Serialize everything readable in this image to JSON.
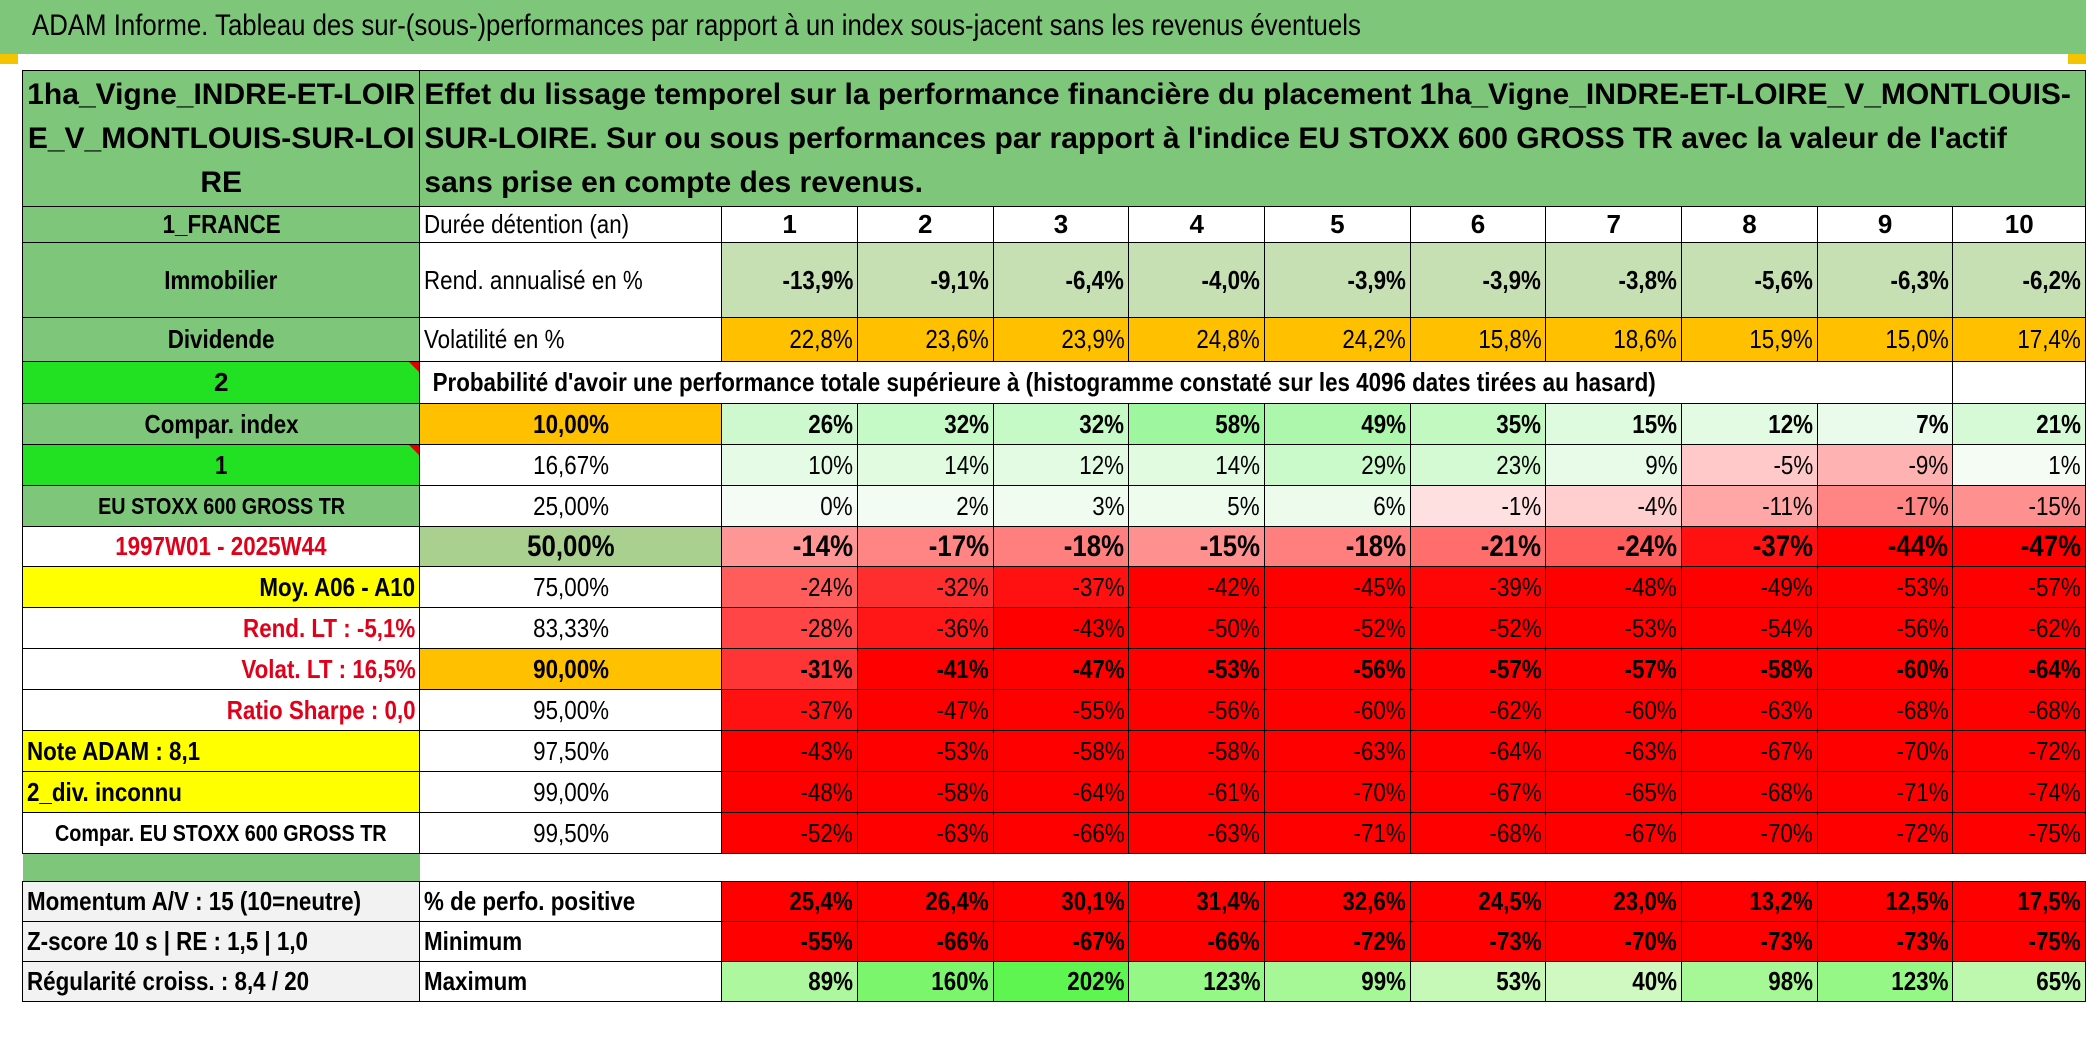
{
  "title": "ADAM Informe. Tableau des sur-(sous-)performances par rapport à un index sous-jacent sans les revenus éventuels",
  "asset_name": "1ha_Vigne_INDRE-ET-LOIRE_V_MONTLOUIS-SUR-LOIRE",
  "description": "Effet du lissage temporel sur la performance financière du placement 1ha_Vigne_INDRE-ET-LOIRE_V_MONTLOUIS-SUR-LOIRE. Sur ou sous performances par rapport à l'indice EU STOXX 600 GROSS TR avec la valeur de l'actif sans prise en compte des revenus.",
  "side_labels": {
    "country": "1_FRANCE",
    "category": "Immobilier",
    "dividend": "Dividende",
    "num2": "2",
    "compar_index": "Compar. index",
    "num1": "1",
    "index_name": "EU STOXX 600 GROSS TR",
    "period": "1997W01 - 2025W44",
    "moy": "Moy. A06 - A10",
    "rend_lt": "Rend. LT :    -5,1%",
    "volat_lt": "Volat. LT :    16,5%",
    "sharpe": "Ratio Sharpe :    0,0",
    "note": "Note ADAM : 8,1",
    "div": "2_div. inconnu",
    "compar_full": "Compar. EU STOXX 600 GROSS TR",
    "momentum": "Momentum A/V : 15 (10=neutre)",
    "zscore": "Z-score 10 s | RE : 1,5 | 1,0",
    "regularite": "Régularité croiss. : 8,4 / 20"
  },
  "row_labels": {
    "duree": "Durée détention (an)",
    "rend": "Rend. annualisé en %",
    "vol": "Volatilité en %",
    "proba": "Probabilité d'avoir une performance totale supérieure à (histogramme constaté sur les 4096 dates tirées au hasard)",
    "pos": "% de perfo. positive",
    "min": "Minimum",
    "max": "Maximum"
  },
  "years": [
    "1",
    "2",
    "3",
    "4",
    "5",
    "6",
    "7",
    "8",
    "9",
    "10"
  ],
  "rend": [
    "-13,9%",
    "-9,1%",
    "-6,4%",
    "-4,0%",
    "-3,9%",
    "-3,9%",
    "-3,8%",
    "-5,6%",
    "-6,3%",
    "-6,2%"
  ],
  "vol": [
    "22,8%",
    "23,6%",
    "23,9%",
    "24,8%",
    "24,2%",
    "15,8%",
    "18,6%",
    "15,9%",
    "15,0%",
    "17,4%"
  ],
  "prob_rows": [
    {
      "p": "10,00%",
      "vals": [
        "26%",
        "32%",
        "32%",
        "58%",
        "49%",
        "35%",
        "15%",
        "12%",
        "7%",
        "21%"
      ]
    },
    {
      "p": "16,67%",
      "vals": [
        "10%",
        "14%",
        "12%",
        "14%",
        "29%",
        "23%",
        "9%",
        "-5%",
        "-9%",
        "1%"
      ]
    },
    {
      "p": "25,00%",
      "vals": [
        "0%",
        "2%",
        "3%",
        "5%",
        "6%",
        "-1%",
        "-4%",
        "-11%",
        "-17%",
        "-15%"
      ]
    },
    {
      "p": "50,00%",
      "vals": [
        "-14%",
        "-17%",
        "-18%",
        "-15%",
        "-18%",
        "-21%",
        "-24%",
        "-37%",
        "-44%",
        "-47%"
      ]
    },
    {
      "p": "75,00%",
      "vals": [
        "-24%",
        "-32%",
        "-37%",
        "-42%",
        "-45%",
        "-39%",
        "-48%",
        "-49%",
        "-53%",
        "-57%"
      ]
    },
    {
      "p": "83,33%",
      "vals": [
        "-28%",
        "-36%",
        "-43%",
        "-50%",
        "-52%",
        "-52%",
        "-53%",
        "-54%",
        "-56%",
        "-62%"
      ]
    },
    {
      "p": "90,00%",
      "vals": [
        "-31%",
        "-41%",
        "-47%",
        "-53%",
        "-56%",
        "-57%",
        "-57%",
        "-58%",
        "-60%",
        "-64%"
      ]
    },
    {
      "p": "95,00%",
      "vals": [
        "-37%",
        "-47%",
        "-55%",
        "-56%",
        "-60%",
        "-62%",
        "-60%",
        "-63%",
        "-68%",
        "-68%"
      ]
    },
    {
      "p": "97,50%",
      "vals": [
        "-43%",
        "-53%",
        "-58%",
        "-58%",
        "-63%",
        "-64%",
        "-63%",
        "-67%",
        "-70%",
        "-72%"
      ]
    },
    {
      "p": "99,00%",
      "vals": [
        "-48%",
        "-58%",
        "-64%",
        "-61%",
        "-70%",
        "-67%",
        "-65%",
        "-68%",
        "-71%",
        "-74%"
      ]
    },
    {
      "p": "99,50%",
      "vals": [
        "-52%",
        "-63%",
        "-66%",
        "-63%",
        "-71%",
        "-68%",
        "-67%",
        "-70%",
        "-72%",
        "-75%"
      ]
    }
  ],
  "pos": [
    "25,4%",
    "26,4%",
    "30,1%",
    "31,4%",
    "32,6%",
    "24,5%",
    "23,0%",
    "13,2%",
    "12,5%",
    "17,5%"
  ],
  "min": [
    "-55%",
    "-66%",
    "-67%",
    "-66%",
    "-72%",
    "-73%",
    "-70%",
    "-73%",
    "-73%",
    "-75%"
  ],
  "max": [
    "89%",
    "160%",
    "202%",
    "123%",
    "99%",
    "53%",
    "40%",
    "98%",
    "123%",
    "65%"
  ],
  "colors": {
    "header_green": "#7dc67a",
    "bright_green": "#22e022",
    "yellow": "#ffff00",
    "orange": "#ffc000",
    "red": "#ff0000",
    "label_red": "#e0001a"
  }
}
